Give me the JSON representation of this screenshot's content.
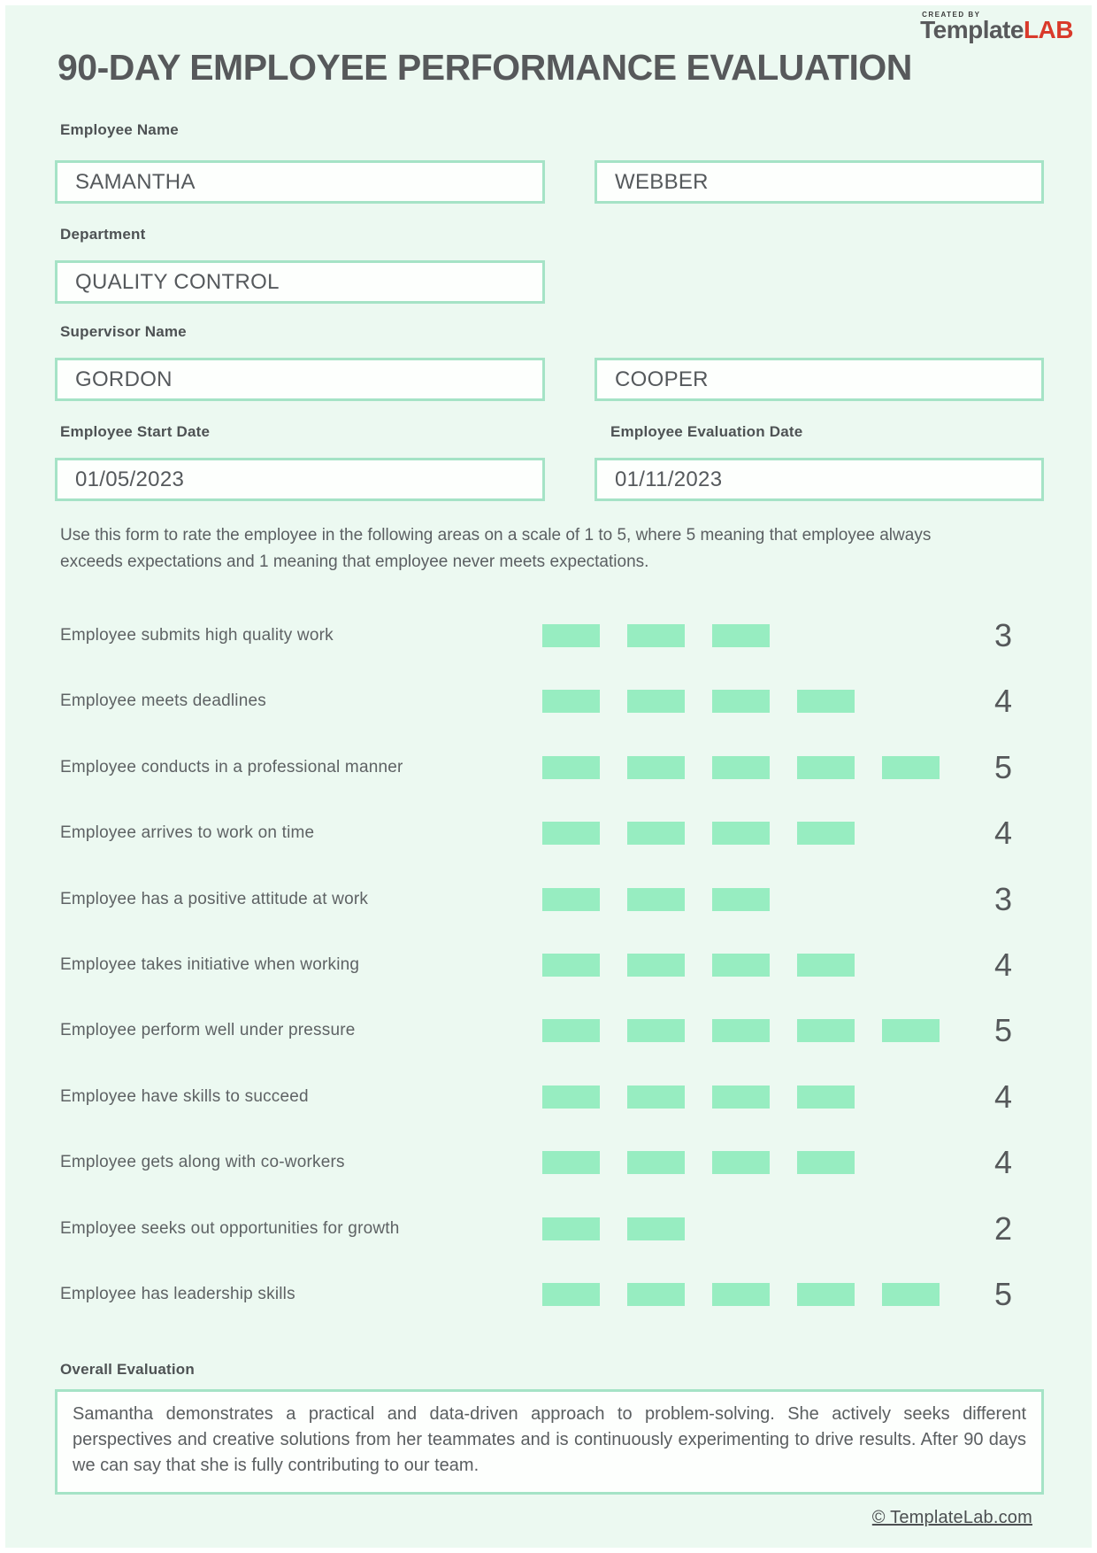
{
  "logo": {
    "created_by": "CREATED BY",
    "brand_primary": "Template",
    "brand_accent": "LAB"
  },
  "title": "90-DAY EMPLOYEE PERFORMANCE EVALUATION",
  "form": {
    "employee_name": {
      "label": "Employee Name",
      "first": "SAMANTHA",
      "last": "WEBBER"
    },
    "department": {
      "label": "Department",
      "value": "QUALITY CONTROL"
    },
    "supervisor_name": {
      "label": "Supervisor Name",
      "first": "GORDON",
      "last": "COOPER"
    },
    "start_date": {
      "label": "Employee Start Date",
      "value": "01/05/2023"
    },
    "evaluation_date": {
      "label": "Employee Evaluation Date",
      "value": "01/11/2023"
    }
  },
  "instructions": "Use this form to rate the employee in the following areas on a scale of 1 to 5, where 5 meaning that employee always exceeds expectations and 1 meaning that employee never meets expectations.",
  "rating_scale": {
    "min": 1,
    "max": 5
  },
  "ratings": [
    {
      "label": "Employee submits high quality work",
      "score": 3
    },
    {
      "label": "Employee meets deadlines",
      "score": 4
    },
    {
      "label": "Employee conducts in a professional manner",
      "score": 5
    },
    {
      "label": "Employee arrives to work on time",
      "score": 4
    },
    {
      "label": "Employee has a positive attitude at work",
      "score": 3
    },
    {
      "label": "Employee takes initiative when working",
      "score": 4
    },
    {
      "label": "Employee perform well under pressure",
      "score": 5
    },
    {
      "label": "Employee have skills to succeed",
      "score": 4
    },
    {
      "label": "Employee gets along with co-workers",
      "score": 4
    },
    {
      "label": "Employee seeks out opportunities for growth",
      "score": 2
    },
    {
      "label": "Employee has leadership skills",
      "score": 5
    }
  ],
  "overall": {
    "label": "Overall Evaluation",
    "text": "Samantha demonstrates a practical and data-driven approach to problem-solving. She actively seeks different perspectives and creative solutions from her teammates and is continuously experimenting to drive results. After 90 days we can say that she is fully contributing to our team."
  },
  "footer": {
    "link": "© TemplateLab.com"
  },
  "colors": {
    "page_bg": "#ecf9f1",
    "box_border": "#a5e3c6",
    "bar_green": "#97edc1",
    "text_dark": "#55585a",
    "accent_red": "#d93a2b"
  }
}
